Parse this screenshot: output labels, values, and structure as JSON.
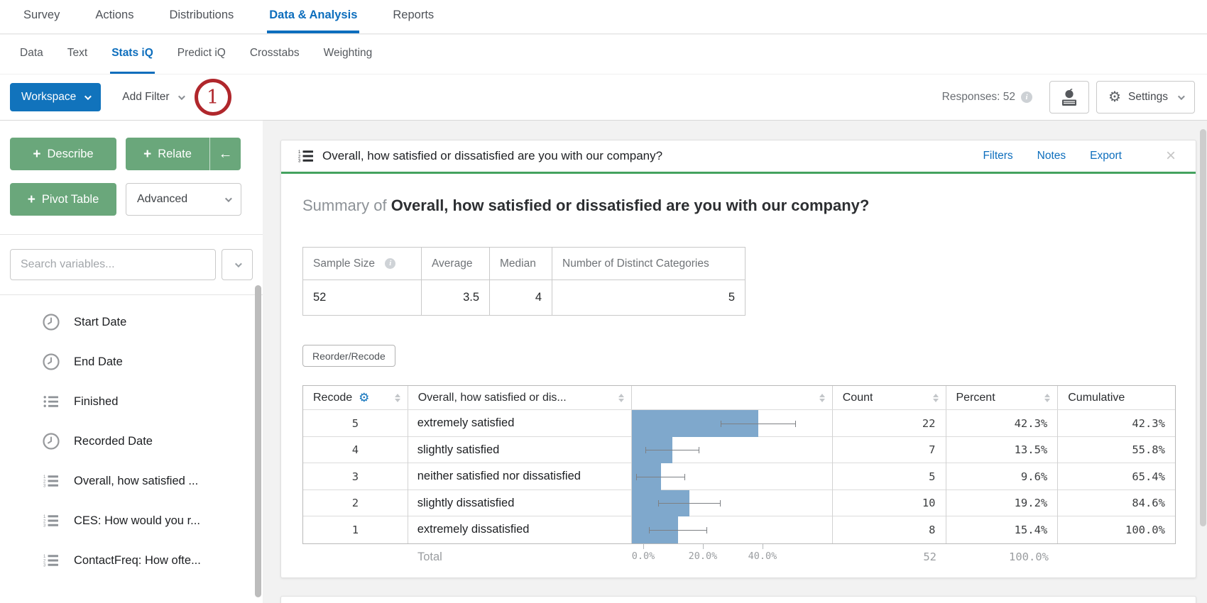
{
  "colors": {
    "accent_blue": "#1173bc",
    "link_blue": "#0d6ebd",
    "button_green": "#6aa77b",
    "card_accent_green": "#44a25f",
    "bar_blue": "#7fa8cc",
    "annotation_red": "#b0272c"
  },
  "nav": {
    "tabs": [
      "Survey",
      "Actions",
      "Distributions",
      "Data & Analysis",
      "Reports"
    ],
    "active": "Data & Analysis"
  },
  "subnav": {
    "tabs": [
      "Data",
      "Text",
      "Stats iQ",
      "Predict iQ",
      "Crosstabs",
      "Weighting"
    ],
    "active": "Stats iQ"
  },
  "toolbar": {
    "workspace_label": "Workspace",
    "add_filter_label": "Add Filter",
    "annotation_badge": "1",
    "responses_label": "Responses: 52",
    "settings_label": "Settings"
  },
  "sidebar": {
    "plus": "+",
    "describe_label": "Describe",
    "relate_label": "Relate",
    "back_arrow": "←",
    "pivot_label": "Pivot Table",
    "advanced_label": "Advanced",
    "search_placeholder": "Search variables...",
    "variables": [
      {
        "label": "Start Date",
        "icon": "clock"
      },
      {
        "label": "End Date",
        "icon": "clock"
      },
      {
        "label": "Finished",
        "icon": "list"
      },
      {
        "label": "Recorded Date",
        "icon": "clock"
      },
      {
        "label": "Overall, how satisfied ...",
        "icon": "ordered-list"
      },
      {
        "label": "CES: How would you r...",
        "icon": "ordered-list"
      },
      {
        "label": "ContactFreq: How ofte...",
        "icon": "ordered-list"
      }
    ]
  },
  "card": {
    "title": "Overall, how satisfied or dissatisfied are you with our company?",
    "actions": [
      "Filters",
      "Notes",
      "Export"
    ],
    "close_glyph": "×",
    "summary_prefix": "Summary of ",
    "summary_title": "Overall, how satisfied or dissatisfied are you with our company?",
    "stats": {
      "headers": [
        "Sample Size",
        "Average",
        "Median",
        "Number of Distinct Categories"
      ],
      "values": [
        "52",
        "3.5",
        "4",
        "5"
      ]
    },
    "reorder_label": "Reorder/Recode"
  },
  "chart_data": {
    "type": "bar",
    "title": "Overall, how satisfied or dissatisfied are you with our company?",
    "columns": [
      "Recode",
      "Overall, how satisfied or dis...",
      "",
      "Count",
      "Percent",
      "Cumulative"
    ],
    "categories": [
      "extremely satisfied",
      "slightly satisfied",
      "neither satisfied nor dissatisfied",
      "slightly dissatisfied",
      "extremely dissatisfied"
    ],
    "rows": [
      {
        "recode": "5",
        "label": "extremely satisfied",
        "count": 22,
        "percent": 42.3,
        "cumulative": 42.3,
        "ci_half_pct": 12.6
      },
      {
        "recode": "4",
        "label": "slightly satisfied",
        "count": 7,
        "percent": 13.5,
        "cumulative": 55.8,
        "ci_half_pct": 9.0
      },
      {
        "recode": "3",
        "label": "neither satisfied nor dissatisfied",
        "count": 5,
        "percent": 9.6,
        "cumulative": 65.4,
        "ci_half_pct": 8.3
      },
      {
        "recode": "2",
        "label": "slightly dissatisfied",
        "count": 10,
        "percent": 19.2,
        "cumulative": 84.6,
        "ci_half_pct": 10.5
      },
      {
        "recode": "1",
        "label": "extremely dissatisfied",
        "count": 8,
        "percent": 15.4,
        "cumulative": 100.0,
        "ci_half_pct": 9.8
      }
    ],
    "total": {
      "label": "Total",
      "count": "52",
      "percent": "100.0%"
    },
    "x_axis": {
      "ticks": [
        "0.0%",
        "20.0%",
        "40.0%"
      ],
      "tick_values": [
        0,
        20,
        40
      ],
      "range": [
        0,
        62
      ]
    },
    "bar_color": "#7fa8cc",
    "grid": false,
    "legend_position": "none"
  }
}
